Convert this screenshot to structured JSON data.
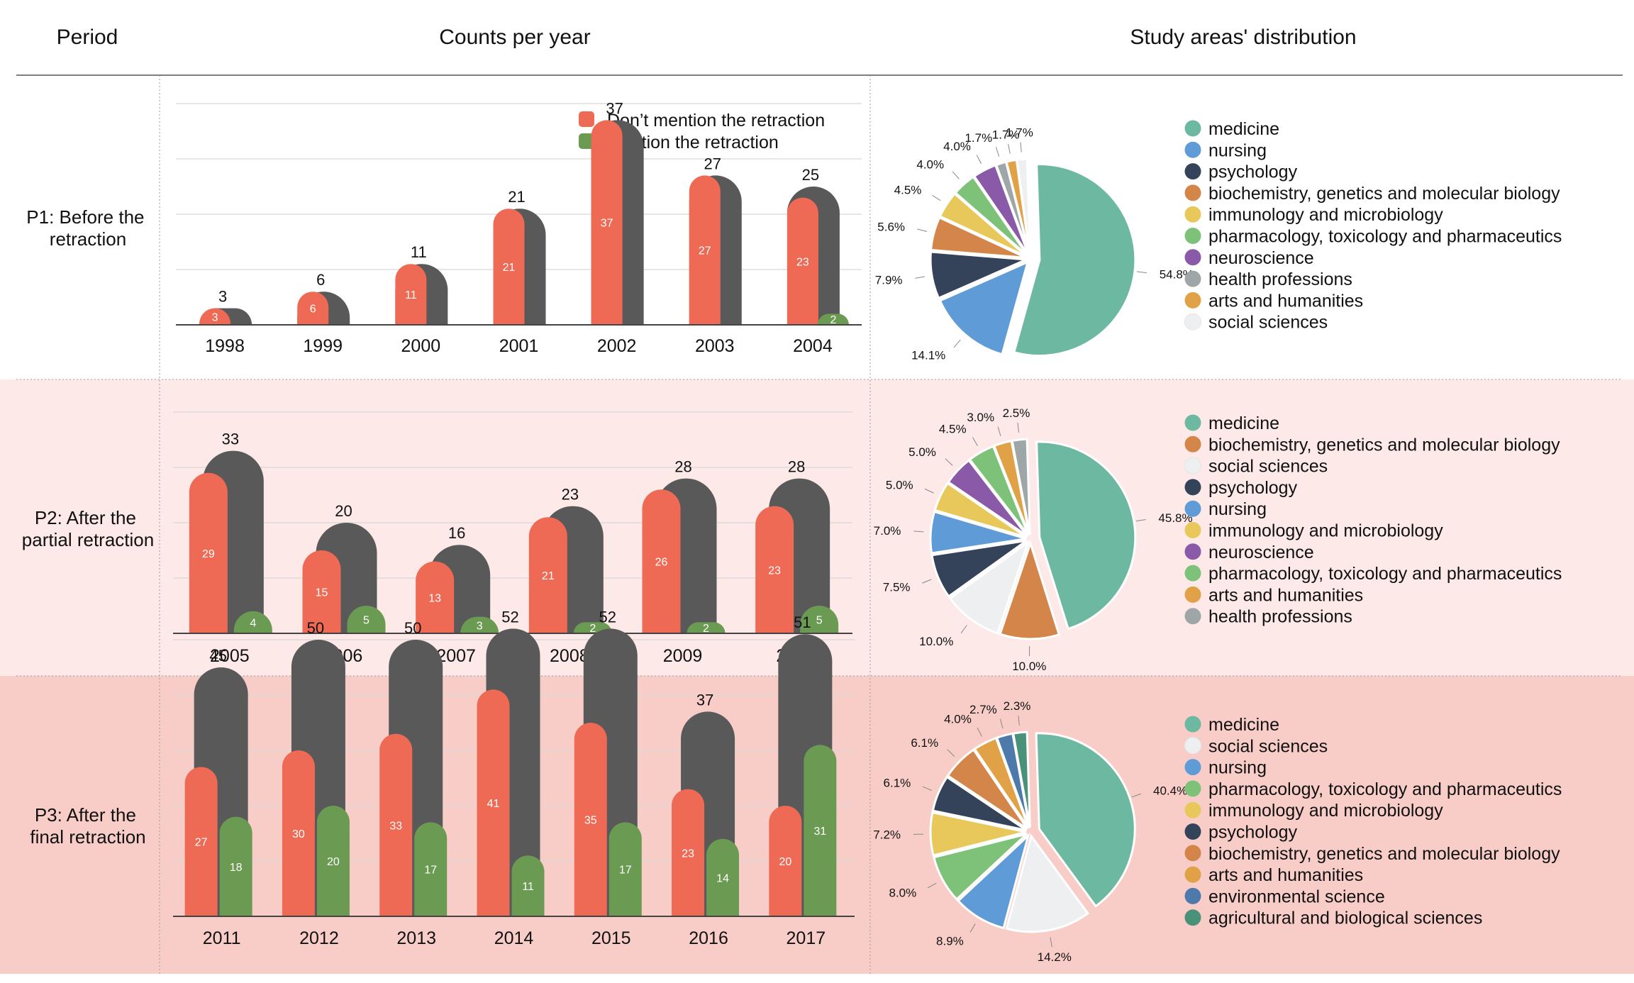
{
  "headers": {
    "period": "Period",
    "counts": "Counts per year",
    "areas": "Study areas' distribution"
  },
  "colors": {
    "not_mention": "#ee6a55",
    "mention": "#6b9a52",
    "total": "#595959",
    "row_bg": [
      "#ffffff",
      "#fce9e8",
      "#f8cdc8"
    ],
    "grid": "#d8d8d8",
    "axis": "#444444"
  },
  "legend": {
    "not_mention": "Don’t mention the retraction",
    "mention": "Mention the retraction"
  },
  "area_colors": {
    "medicine": "#6db8a0",
    "nursing": "#5f9bd6",
    "psychology": "#34435a",
    "biochemistry, genetics and molecular biology": "#d4864a",
    "immunology and microbiology": "#e8c85a",
    "pharmacology, toxicology and pharmaceutics": "#7ec27a",
    "pharmacology, toxicology and pharmaceutics ": "#7ec27a",
    "neuroscience": "#8a5aa8",
    "health professions": "#9fa6a8",
    "arts and humanities": "#e1a146",
    "social sciences": "#eeeff1",
    "environmental science": "#4d7aaa",
    "agricultural and biological sciences": "#4a917a"
  },
  "periods": [
    {
      "label_lines": [
        "P1: Before the",
        "retraction"
      ],
      "pie_legend": [
        "medicine",
        "nursing",
        "psychology",
        "biochemistry, genetics and molecular biology",
        "immunology and microbiology",
        "pharmacology, toxicology and pharmaceutics",
        "neuroscience",
        "health professions",
        "arts and humanities",
        "social sciences"
      ]
    },
    {
      "label_lines": [
        "P2: After the",
        "partial retraction"
      ],
      "pie_legend": [
        "medicine",
        "biochemistry, genetics and molecular biology",
        "social sciences",
        "psychology",
        "nursing",
        "immunology and microbiology",
        "neuroscience",
        "pharmacology, toxicology and pharmaceutics",
        "arts and humanities",
        "health professions"
      ]
    },
    {
      "label_lines": [
        "P3: After the",
        "final retraction"
      ],
      "pie_legend": [
        "medicine",
        "social sciences",
        "nursing",
        "pharmacology, toxicology and pharmaceutics ",
        "immunology and microbiology",
        "psychology",
        "biochemistry, genetics and molecular biology",
        "arts and humanities",
        "environmental science",
        "agricultural and biological sciences"
      ]
    }
  ],
  "chart_data": [
    {
      "type": "bar",
      "period": "P1",
      "categories": [
        "1998",
        "1999",
        "2000",
        "2001",
        "2002",
        "2003",
        "2004"
      ],
      "series": [
        {
          "name": "Don’t mention the retraction",
          "values": [
            3,
            6,
            11,
            21,
            37,
            27,
            23
          ]
        },
        {
          "name": "Mention the retraction",
          "values": [
            0,
            0,
            0,
            0,
            0,
            0,
            2
          ]
        }
      ],
      "totals": [
        3,
        6,
        11,
        21,
        37,
        27,
        25
      ],
      "ylim": [
        0,
        40
      ],
      "grid": true,
      "legend": "top-right"
    },
    {
      "type": "pie",
      "period": "P1",
      "labels": [
        "medicine",
        "nursing",
        "psychology",
        "biochemistry, genetics and molecular biology",
        "immunology and microbiology",
        "pharmacology, toxicology and pharmaceutics",
        "neuroscience",
        "health professions",
        "arts and humanities",
        "social sciences"
      ],
      "values": [
        54.8,
        14.1,
        7.9,
        5.6,
        4.5,
        4.0,
        4.0,
        1.7,
        1.7,
        1.7
      ],
      "value_labels": [
        "54.8%",
        "14.1%",
        "7.9%",
        "5.6%",
        "4.5%",
        "4.0%",
        "4.0%",
        "1.7%",
        "1.7%",
        "1.7%"
      ]
    },
    {
      "type": "bar",
      "period": "P2",
      "categories": [
        "2005",
        "2006",
        "2007",
        "2008",
        "2009",
        "2010"
      ],
      "series": [
        {
          "name": "Don’t mention the retraction",
          "values": [
            29,
            15,
            13,
            21,
            26,
            23
          ]
        },
        {
          "name": "Mention the retraction",
          "values": [
            4,
            5,
            3,
            2,
            2,
            5
          ]
        }
      ],
      "totals": [
        33,
        20,
        16,
        23,
        28,
        28
      ],
      "ylim": [
        0,
        40
      ],
      "grid": true
    },
    {
      "type": "pie",
      "period": "P2",
      "labels": [
        "medicine",
        "biochemistry, genetics and molecular biology",
        "social sciences",
        "psychology",
        "nursing",
        "immunology and microbiology",
        "neuroscience",
        "pharmacology, toxicology and pharmaceutics",
        "arts and humanities",
        "health professions"
      ],
      "values": [
        45.8,
        10.0,
        10.0,
        7.5,
        7.0,
        5.0,
        5.0,
        4.5,
        3.0,
        2.5
      ],
      "value_labels": [
        "45.8%",
        "10.0%",
        "10.0%",
        "7.5%",
        "7.0%",
        "5.0%",
        "5.0%",
        "4.5%",
        "3.0%",
        "2.5%"
      ]
    },
    {
      "type": "bar",
      "period": "P3",
      "categories": [
        "2011",
        "2012",
        "2013",
        "2014",
        "2015",
        "2016",
        "2017"
      ],
      "series": [
        {
          "name": "Don’t mention the retraction",
          "values": [
            27,
            30,
            33,
            41,
            35,
            23,
            20
          ]
        },
        {
          "name": "Mention the retraction",
          "values": [
            18,
            20,
            17,
            11,
            17,
            14,
            31
          ]
        }
      ],
      "totals": [
        45,
        50,
        50,
        52,
        52,
        37,
        51
      ],
      "ylim": [
        0,
        60
      ],
      "grid": true
    },
    {
      "type": "pie",
      "period": "P3",
      "labels": [
        "medicine",
        "social sciences",
        "nursing",
        "pharmacology, toxicology and pharmaceutics",
        "immunology and microbiology",
        "psychology",
        "biochemistry, genetics and molecular biology",
        "arts and humanities",
        "environmental science",
        "agricultural and biological sciences"
      ],
      "values": [
        40.4,
        14.2,
        8.9,
        8.0,
        7.2,
        6.1,
        6.1,
        4.0,
        2.7,
        2.3
      ],
      "value_labels": [
        "40.4%",
        "14.2%",
        "8.9%",
        "8.0%",
        "7.2%",
        "6.1%",
        "6.1%",
        "4.0%",
        "2.7%",
        "2.3%"
      ]
    }
  ]
}
